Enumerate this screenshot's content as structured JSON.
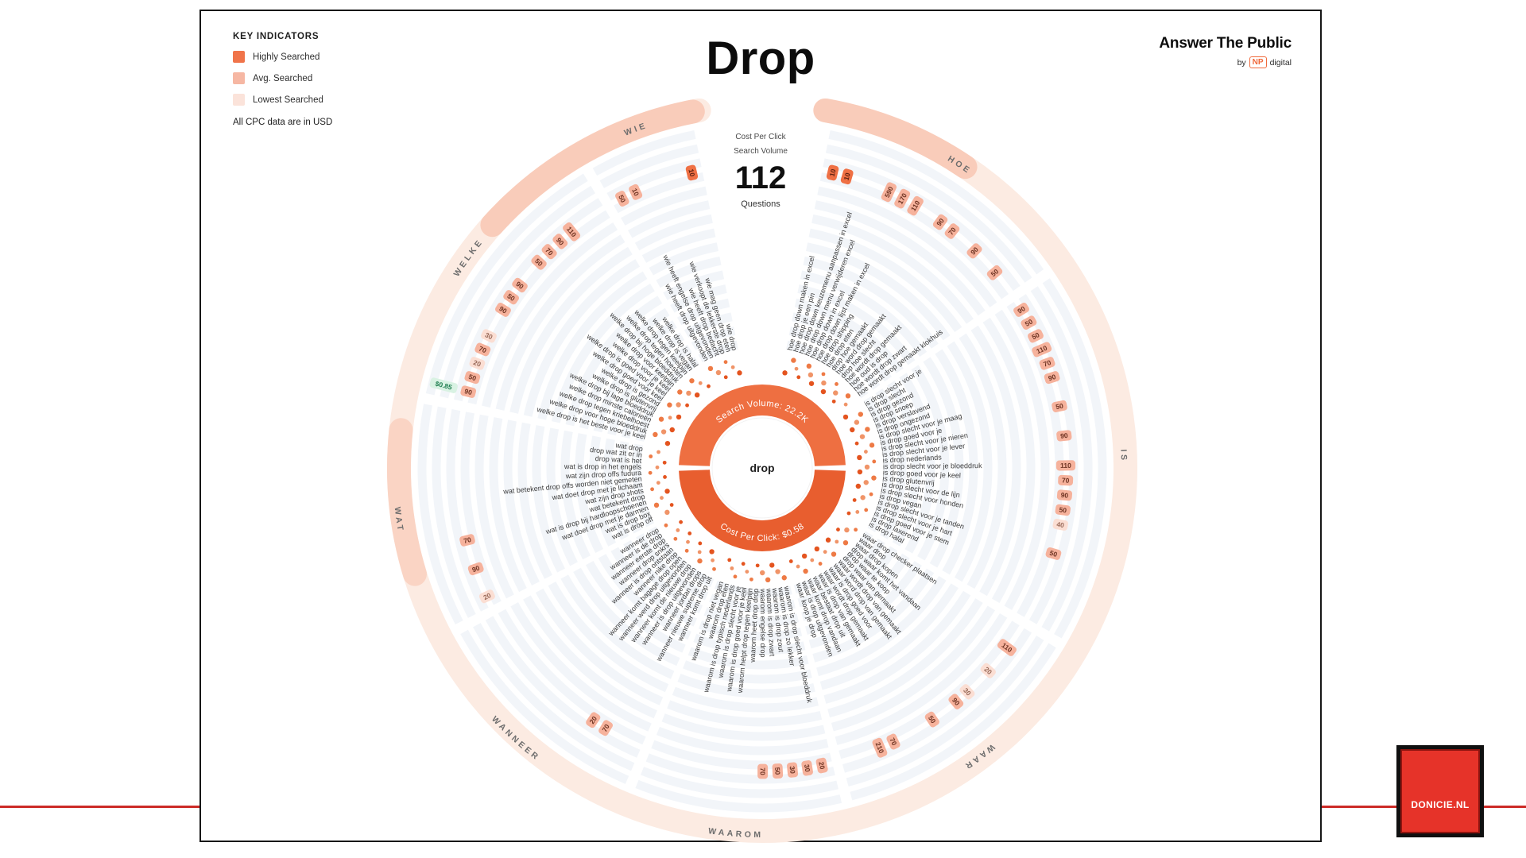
{
  "page": {
    "background": "#ffffff",
    "red_line_color": "#cc2b27"
  },
  "header": {
    "title": "Drop"
  },
  "legend": {
    "title": "KEY INDICATORS",
    "items": [
      {
        "label": "Highly Searched",
        "color": "#f0744a",
        "tone": "high"
      },
      {
        "label": "Avg. Searched",
        "color": "#f6b7a3",
        "tone": "avg"
      },
      {
        "label": "Lowest Searched",
        "color": "#fbe3da",
        "tone": "low"
      }
    ],
    "note": "All CPC data are in USD"
  },
  "logo": {
    "brand": "Answer The Public",
    "by": "by",
    "np": "NP",
    "digital": "digital"
  },
  "stats": {
    "cpc_label": "Cost Per Click",
    "volume_label": "Search Volume",
    "count": "112",
    "count_label": "Questions"
  },
  "watermark": {
    "label": "DONICIE.NL"
  },
  "chart_data": {
    "type": "radial-question-wheel",
    "keyword": "drop",
    "total_questions": 112,
    "center": {
      "keyword": "drop",
      "search_volume": "Search Volume: 22.2K",
      "cpc": "Cost Per Click: $0.58"
    },
    "colors": {
      "donut_top": "#ee6f41",
      "donut_bottom": "#e85e2f",
      "band": "#fcebe2",
      "grid": "#edf1f7",
      "question_text": "#3b3b3b",
      "category_label": "#6d6d6d",
      "badge_high_bg": "#ef7044",
      "badge_high_fg": "#5b2010",
      "badge_avg_bg": "#f6b29c",
      "badge_avg_fg": "#6d3322",
      "badge_low_bg": "#fbded3",
      "badge_low_fg": "#996a59",
      "badge_cpc_bg": "#d9f2e3",
      "badge_cpc_fg": "#1e7d4f",
      "dots": [
        "#e4541f",
        "#ee7a45",
        "#f09468"
      ]
    },
    "band_accents": [
      {
        "a1": 10,
        "a2": 34,
        "color": "#f8c9b6"
      },
      {
        "a1": 253,
        "a2": 276,
        "color": "#f9d2c1"
      },
      {
        "a1": 312,
        "a2": 349,
        "color": "#f8c9b6"
      }
    ],
    "categories": [
      {
        "name": "HOE",
        "questions": [
          {
            "t": "hoe drop down maken in excel",
            "vol": "10",
            "tone": "high"
          },
          {
            "t": "hoe drop je een pin",
            "vol": "10",
            "tone": "high"
          },
          {
            "t": "hoe drop down keuzemenu aanpassen in excel"
          },
          {
            "t": "hoe drop down menu verwijderen excel"
          },
          {
            "t": "hoe drop down in excel",
            "vol": "590",
            "tone": "avg"
          },
          {
            "t": "hoe drop down lijst maken in excel",
            "vol": "170",
            "tone": "avg"
          },
          {
            "t": "hoe drop shipping",
            "vol": "110",
            "tone": "avg"
          },
          {
            "t": "hoe drop eten"
          },
          {
            "t": "drop hoe gemaakt",
            "vol": "90",
            "tone": "avg"
          },
          {
            "t": "hoe word drop gemaakt",
            "vol": "70",
            "tone": "avg"
          },
          {
            "t": "drop hoe slecht"
          },
          {
            "t": "hoe wordt drop gemaakt",
            "vol": "90",
            "tone": "avg"
          },
          {
            "t": "hoe oud is drop"
          },
          {
            "t": "hoe wordt drop zwart",
            "vol": "50",
            "tone": "avg"
          },
          {
            "t": "hoe wordt drop gemaakt klokhuis"
          }
        ]
      },
      {
        "name": "IS",
        "questions": [
          {
            "t": "is drop slecht voor je",
            "vol": "90",
            "tone": "avg"
          },
          {
            "t": "is drop slecht",
            "vol": "50",
            "tone": "avg"
          },
          {
            "t": "is drop gezond",
            "vol": "50",
            "tone": "avg"
          },
          {
            "t": "is drop snoep",
            "vol": "110",
            "tone": "avg"
          },
          {
            "t": "is drop verslavend",
            "vol": "70",
            "tone": "avg"
          },
          {
            "t": "is drop ongezond",
            "vol": "90",
            "tone": "avg"
          },
          {
            "t": "is drop slecht voor je maag"
          },
          {
            "t": "is drop goed voor je",
            "vol": "50",
            "tone": "avg"
          },
          {
            "t": "is drop slecht voor je nieren"
          },
          {
            "t": "is drop slecht voor je lever",
            "vol": "90",
            "tone": "avg"
          },
          {
            "t": "is drop nederlands"
          },
          {
            "t": "is drop slecht voor je bloeddruk",
            "vol": "110",
            "tone": "avg"
          },
          {
            "t": "is drop goed voor je keel",
            "vol": "70",
            "tone": "avg"
          },
          {
            "t": "is drop glutenvrij",
            "vol": "90",
            "tone": "avg"
          },
          {
            "t": "is drop slecht voor de lijn",
            "vol": "50",
            "tone": "avg"
          },
          {
            "t": "is drop slecht voor honden",
            "vol": "40",
            "tone": "low"
          },
          {
            "t": "is drop vegan"
          },
          {
            "t": "is drop slecht voor je tanden",
            "vol": "50",
            "tone": "avg"
          },
          {
            "t": "is drop slecht voor je hart"
          },
          {
            "t": "is drop goed voor je stem"
          },
          {
            "t": "is drop laxerend"
          },
          {
            "t": "is drop halal"
          }
        ]
      },
      {
        "name": "WAAR",
        "questions": [
          {
            "t": "waar drop checker plaatsen"
          },
          {
            "t": "waar drop",
            "vol": "110",
            "tone": "avg"
          },
          {
            "t": "waar drop kopen"
          },
          {
            "t": "drop waar komt het vandaan",
            "vol": "20",
            "tone": "low"
          },
          {
            "t": "drop waar te koop"
          },
          {
            "t": "drop waar van gemaakt",
            "vol": "30",
            "tone": "low"
          },
          {
            "t": "waar wordt drop van gemaakt",
            "vol": "90",
            "tone": "avg"
          },
          {
            "t": "waar word drop van gemaakt"
          },
          {
            "t": "waar is drop goed voor",
            "vol": "50",
            "tone": "avg"
          },
          {
            "t": "waar wordt drop gemaakt"
          },
          {
            "t": "waar is drop van gemaakt"
          },
          {
            "t": "waar bestaat drop uit",
            "vol": "70",
            "tone": "avg"
          },
          {
            "t": "waar komt drop vandaan",
            "vol": "210",
            "tone": "avg"
          },
          {
            "t": "waar is drop uitgevonden"
          },
          {
            "t": "waar koop je drop"
          }
        ]
      },
      {
        "name": "WAAROM",
        "questions": [
          {
            "t": "waarom is drop slecht voor bloeddruk",
            "vol": "20",
            "tone": "avg"
          },
          {
            "t": "waarom is drop zo lekker",
            "vol": "30",
            "tone": "avg"
          },
          {
            "t": "waarom is drop zout",
            "vol": "30",
            "tone": "avg"
          },
          {
            "t": "waarom is drop zwart",
            "vol": "50",
            "tone": "avg"
          },
          {
            "t": "waarom engelse drop",
            "vol": "70",
            "tone": "avg"
          },
          {
            "t": "waarom heet drop drop"
          },
          {
            "t": "waarom helpt drop tegen keelpijn"
          },
          {
            "t": "waarom is drop goed voor je keel"
          },
          {
            "t": "waarom is drop slecht voor je"
          },
          {
            "t": "waarom is drop typisch nederlands"
          },
          {
            "t": "waarom drop eten"
          },
          {
            "t": "waarom is drop niet vegan"
          }
        ]
      },
      {
        "name": "WANNEER",
        "questions": [
          {
            "t": "wanneer komt drop uit"
          },
          {
            "t": "wanneer nieuwe supreme drop"
          },
          {
            "t": "wanneer jordan drops",
            "vol": "70",
            "tone": "avg"
          },
          {
            "t": "wanneer is drop uitgevonden",
            "vol": "20",
            "tone": "avg"
          },
          {
            "t": "wanneer komt de nieuwe drop"
          },
          {
            "t": "wanneer werd drop uitgevonden"
          },
          {
            "t": "wanneer komt bagage drop open"
          },
          {
            "t": "wanneer nike drop"
          },
          {
            "t": "wanneer is drop ontstaan"
          },
          {
            "t": "wanneer drop snkrs"
          },
          {
            "t": "wanneer eerste drop"
          },
          {
            "t": "wanneer is de drop"
          },
          {
            "t": "wanneer drop"
          }
        ]
      },
      {
        "name": "WAT",
        "questions": [
          {
            "t": "wat is drop off",
            "vol": "20",
            "tone": "low"
          },
          {
            "t": "wat is drop box"
          },
          {
            "t": "wat doet drop met je darmen",
            "vol": "90",
            "tone": "avg"
          },
          {
            "t": "wat is drop bij hardloopschoenen"
          },
          {
            "t": "wat betekent drop",
            "vol": "70",
            "tone": "avg"
          },
          {
            "t": "wat zijn drop shots"
          },
          {
            "t": "wat doet drop met je lichaam"
          },
          {
            "t": "wat betekent drop offs worden niet gemeten"
          },
          {
            "t": "wat zijn drop offs fudura"
          },
          {
            "t": "wat is drop in het engels"
          },
          {
            "t": "drop wat is het"
          },
          {
            "t": "drop wat zit er in"
          },
          {
            "t": "wat drop"
          }
        ]
      },
      {
        "name": "WELKE",
        "questions": [
          {
            "t": "welke drop is het beste voor je keel",
            "cpc": "$0.85",
            "vol": "90",
            "tone": "avg"
          },
          {
            "t": "welke drop voor hoge bloeddruk",
            "vol": "50",
            "tone": "avg"
          },
          {
            "t": "welke drop tegen kriebelhoest",
            "vol": "20",
            "tone": "low"
          },
          {
            "t": "welke drop minste calorieën",
            "vol": "70",
            "tone": "avg"
          },
          {
            "t": "welke drop bij lage bloeddruk",
            "vol": "30",
            "tone": "low"
          },
          {
            "t": "welke drop is glutenvrij"
          },
          {
            "t": "welke drop is gezond",
            "vol": "90",
            "tone": "avg"
          },
          {
            "t": "welke drop goed voor keel",
            "vol": "50",
            "tone": "avg"
          },
          {
            "t": "welke drop is goed voor je keel",
            "vol": "90",
            "tone": "avg"
          },
          {
            "t": "welke drop voor je keel"
          },
          {
            "t": "welke drop voor keelpijn",
            "vol": "50",
            "tone": "avg"
          },
          {
            "t": "welke drop bij hoge bloeddruk",
            "vol": "70",
            "tone": "avg"
          },
          {
            "t": "welke drop tegen hoesten",
            "vol": "90",
            "tone": "avg"
          },
          {
            "t": "welke drop tegen keelpijn",
            "vol": "110",
            "tone": "avg"
          },
          {
            "t": "welke drop is vegan"
          },
          {
            "t": "welke drop is halal"
          }
        ]
      },
      {
        "name": "WIE",
        "questions": [
          {
            "t": "wie heeft drop uitgevonden",
            "vol": "50",
            "tone": "avg"
          },
          {
            "t": "wie heeft engelse drop uitgevonden",
            "vol": "10",
            "tone": "avg"
          },
          {
            "t": "wie heeft drop bedacht"
          },
          {
            "t": "wie verkoopt de lekkerste drop"
          },
          {
            "t": "wie mag geen drop eten"
          },
          {
            "t": "wie drop",
            "vol": "10",
            "tone": "high"
          }
        ]
      }
    ]
  }
}
